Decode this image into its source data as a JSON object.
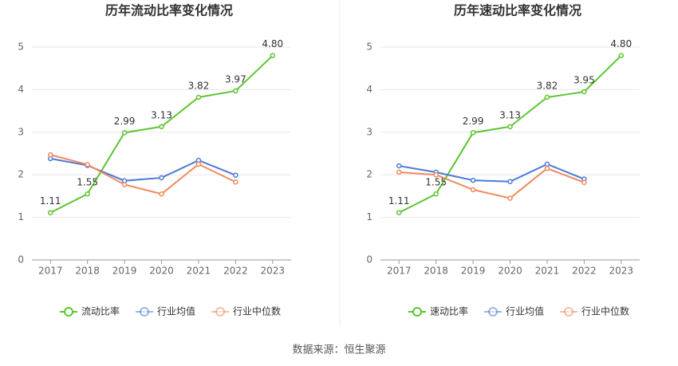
{
  "chart_data": [
    {
      "type": "line",
      "title": "历年流动比率变化情况",
      "categories": [
        "2017",
        "2018",
        "2019",
        "2020",
        "2021",
        "2022",
        "2023"
      ],
      "series": [
        {
          "name": "流动比率",
          "color": "#5cc531",
          "values": [
            1.11,
            1.55,
            2.99,
            3.13,
            3.82,
            3.97,
            4.8
          ],
          "value_labels": [
            "1.11",
            "1.55",
            "2.99",
            "3.13",
            "3.82",
            "3.97",
            "4.80"
          ]
        },
        {
          "name": "行业均值",
          "color": "#4a7bd6",
          "values": [
            2.38,
            2.22,
            1.86,
            1.93,
            2.34,
            1.99,
            null
          ]
        },
        {
          "name": "行业中位数",
          "color": "#f08a5d",
          "values": [
            2.47,
            2.24,
            1.77,
            1.55,
            2.25,
            1.83,
            null
          ]
        }
      ],
      "ylim": [
        0,
        5
      ],
      "yticks": [
        0,
        1,
        2,
        3,
        4,
        5
      ],
      "grid": true
    },
    {
      "type": "line",
      "title": "历年速动比率变化情况",
      "categories": [
        "2017",
        "2018",
        "2019",
        "2020",
        "2021",
        "2022",
        "2023"
      ],
      "series": [
        {
          "name": "速动比率",
          "color": "#5cc531",
          "values": [
            1.11,
            1.55,
            2.99,
            3.13,
            3.82,
            3.95,
            4.8
          ],
          "value_labels": [
            "1.11",
            "1.55",
            "2.99",
            "3.13",
            "3.82",
            "3.95",
            "4.80"
          ]
        },
        {
          "name": "行业均值",
          "color": "#4a7bd6",
          "values": [
            2.21,
            2.06,
            1.87,
            1.84,
            2.25,
            1.9,
            null
          ]
        },
        {
          "name": "行业中位数",
          "color": "#f08a5d",
          "values": [
            2.06,
            2.0,
            1.65,
            1.45,
            2.15,
            1.82,
            null
          ]
        }
      ],
      "ylim": [
        0,
        5
      ],
      "yticks": [
        0,
        1,
        2,
        3,
        4,
        5
      ],
      "grid": true
    }
  ],
  "source": "数据来源：恒生聚源"
}
